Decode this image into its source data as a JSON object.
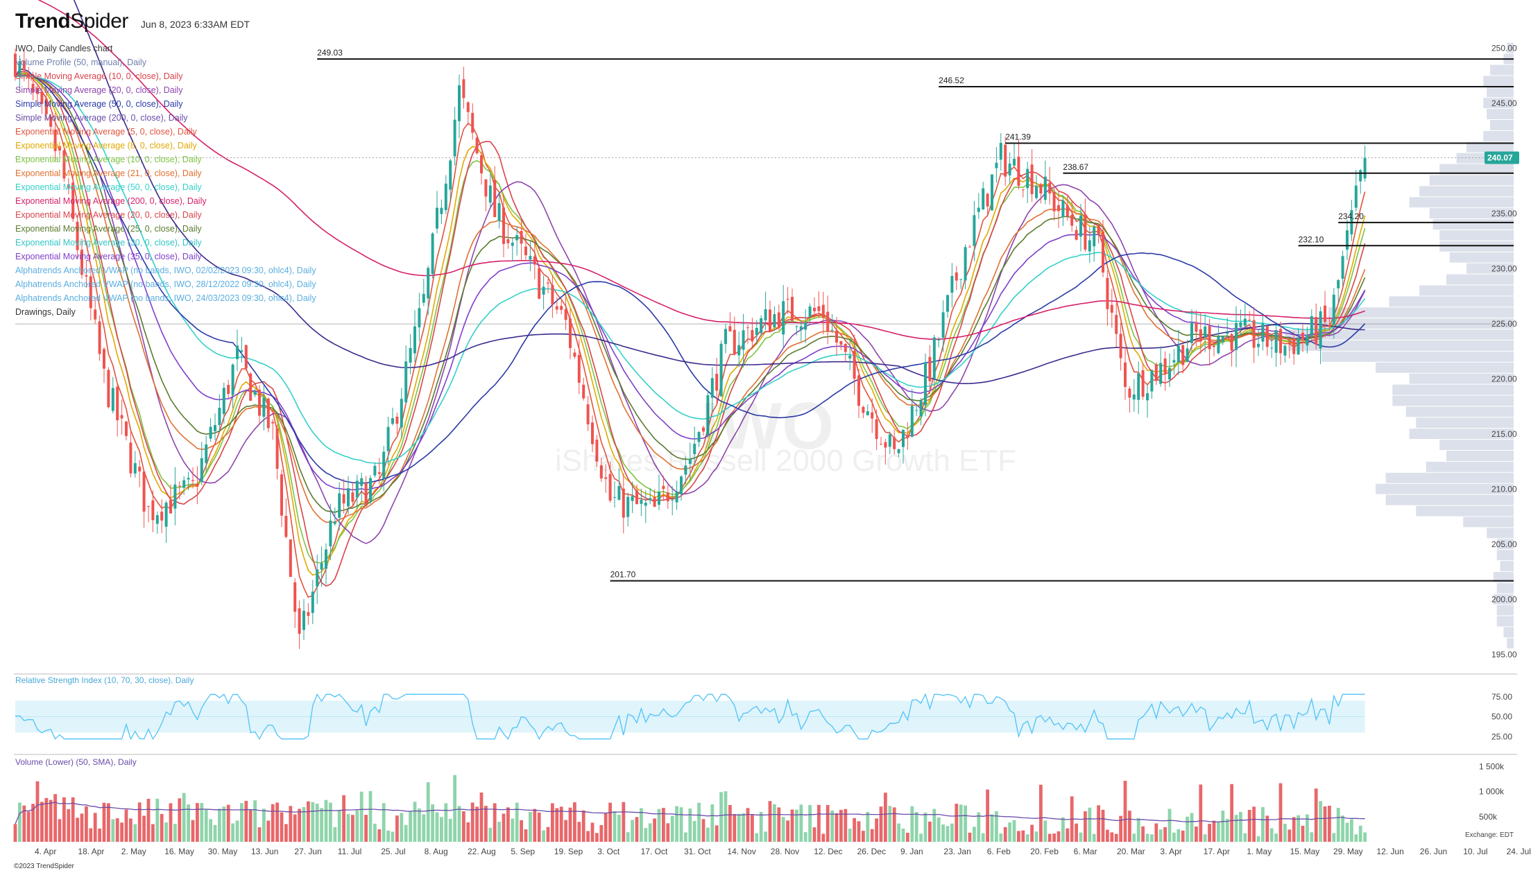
{
  "header": {
    "brand_bold": "Trend",
    "brand_light": "Spider",
    "date": "Jun 8, 2023 6:33AM EDT"
  },
  "legend": [
    {
      "text": "IWO, Daily Candles chart",
      "color": "#333333"
    },
    {
      "text": "Volume Profile (50, manual), Daily",
      "color": "#6f7fae"
    },
    {
      "text": "Simple Moving Average (10, 0, close), Daily",
      "color": "#d9434b"
    },
    {
      "text": "Simple Moving Average (20, 0, close), Daily",
      "color": "#8e44ad"
    },
    {
      "text": "Simple Moving Average (50, 0, close), Daily",
      "color": "#2a3aa8"
    },
    {
      "text": "Simple Moving Average (200, 0, close), Daily",
      "color": "#6a4ca8"
    },
    {
      "text": "Exponential Moving Average (5, 0, close), Daily",
      "color": "#e0543e"
    },
    {
      "text": "Exponential Moving Average (8, 0, close), Daily",
      "color": "#e0a800"
    },
    {
      "text": "Exponential Moving Average (10, 0, close), Daily",
      "color": "#7cc442"
    },
    {
      "text": "Exponential Moving Average (21, 0, close), Daily",
      "color": "#e07030"
    },
    {
      "text": "Exponential Moving Average (50, 0, close), Daily",
      "color": "#34d0c8"
    },
    {
      "text": "Exponential Moving Average (200, 0, close), Daily",
      "color": "#d61f69"
    },
    {
      "text": "Exponential Moving Average (20, 0, close), Daily",
      "color": "#d9434b"
    },
    {
      "text": "Exponential Moving Average (25, 0, close), Daily",
      "color": "#5a7a2e"
    },
    {
      "text": "Exponential Moving Average (30, 0, close), Daily",
      "color": "#34c4c4"
    },
    {
      "text": "Exponential Moving Average (35, 0, close), Daily",
      "color": "#7e3fc9"
    },
    {
      "text": "Alphatrends Anchored VWAP (no bands, IWO, 02/02/2023 09:30, ohlc4), Daily",
      "color": "#5aaee0"
    },
    {
      "text": "Alphatrends Anchored VWAP (no bands, IWO, 28/12/2022 09:30, ohlc4), Daily",
      "color": "#5aaee0"
    },
    {
      "text": "Alphatrends Anchored VWAP (no bands, IWO, 24/03/2023 09:30, ohlc4), Daily",
      "color": "#5aaee0"
    },
    {
      "text": "Drawings, Daily",
      "color": "#333333"
    }
  ],
  "watermark": {
    "symbol": "IWO",
    "name": "iShares Russell 2000 Growth ETF"
  },
  "rsi_title": "Relative Strength Index (10, 70, 30, close), Daily",
  "volume_title": "Volume (Lower) (50, SMA), Daily",
  "copyright": "©2023 TrendSpider",
  "exchange": "Exchange: EDT",
  "last_price": "240.07",
  "colors": {
    "up": "#26a69a",
    "down": "#ef5350",
    "last_price_bg": "#26a69a",
    "rsi": "#4fc3f7",
    "rsi_band": "#e0f4fb",
    "profile": "#d8dde8"
  },
  "chart_data": {
    "type": "candlestick",
    "x_tick_labels": [
      "4. Apr",
      "18. Apr",
      "2. May",
      "16. May",
      "30. May",
      "13. Jun",
      "27. Jun",
      "11. Jul",
      "25. Jul",
      "8. Aug",
      "22. Aug",
      "5. Sep",
      "19. Sep",
      "3. Oct",
      "17. Oct",
      "31. Oct",
      "14. Nov",
      "28. Nov",
      "12. Dec",
      "26. Dec",
      "9. Jan",
      "23. Jan",
      "6. Feb",
      "20. Feb",
      "6. Mar",
      "20. Mar",
      "3. Apr",
      "17. Apr",
      "1. May",
      "15. May",
      "29. May",
      "12. Jun",
      "26. Jun",
      "10. Jul",
      "24. Jul"
    ],
    "y_ticks": [
      "250.00",
      "245.00",
      "240.00",
      "235.00",
      "230.00",
      "225.00",
      "220.00",
      "215.00",
      "210.00",
      "205.00",
      "200.00",
      "195.00"
    ],
    "ylim": [
      193.5,
      253.5
    ],
    "close_waypoints": [
      [
        0,
        249
      ],
      [
        10,
        240
      ],
      [
        20,
        220
      ],
      [
        30,
        208
      ],
      [
        40,
        210
      ],
      [
        50,
        222
      ],
      [
        58,
        215
      ],
      [
        64,
        196
      ],
      [
        72,
        208
      ],
      [
        82,
        211
      ],
      [
        92,
        227
      ],
      [
        100,
        246
      ],
      [
        108,
        235
      ],
      [
        116,
        230
      ],
      [
        124,
        225
      ],
      [
        134,
        209
      ],
      [
        144,
        208
      ],
      [
        152,
        213
      ],
      [
        160,
        223
      ],
      [
        172,
        226
      ],
      [
        182,
        226
      ],
      [
        190,
        219
      ],
      [
        198,
        213
      ],
      [
        206,
        221
      ],
      [
        214,
        232
      ],
      [
        222,
        240
      ],
      [
        230,
        238
      ],
      [
        236,
        235
      ],
      [
        244,
        232
      ],
      [
        250,
        219
      ],
      [
        258,
        221
      ],
      [
        266,
        224
      ],
      [
        276,
        224
      ],
      [
        286,
        223
      ],
      [
        296,
        225
      ],
      [
        304,
        240
      ]
    ],
    "horizontal_levels": [
      {
        "price": 249.03,
        "label": "249.03",
        "from_bar": 68
      },
      {
        "price": 246.52,
        "label": "246.52",
        "from_bar": 208
      },
      {
        "price": 241.39,
        "label": "241.39",
        "from_bar": 223
      },
      {
        "price": 238.67,
        "label": "238.67",
        "from_bar": 236
      },
      {
        "price": 234.2,
        "label": "234.20",
        "from_bar": 298
      },
      {
        "price": 232.1,
        "label": "232.10",
        "from_bar": 289
      },
      {
        "price": 201.7,
        "label": "201.70",
        "from_bar": 134
      },
      {
        "price": 225.0,
        "label": "",
        "from_bar": 0
      }
    ],
    "rsi_ticks": [
      "75.00",
      "50.00",
      "25.00"
    ],
    "rsi_band": [
      30,
      70
    ],
    "volume_ticks": [
      "1 500k",
      "1 000k",
      "500k"
    ],
    "volume_range": [
      0,
      1600
    ]
  }
}
